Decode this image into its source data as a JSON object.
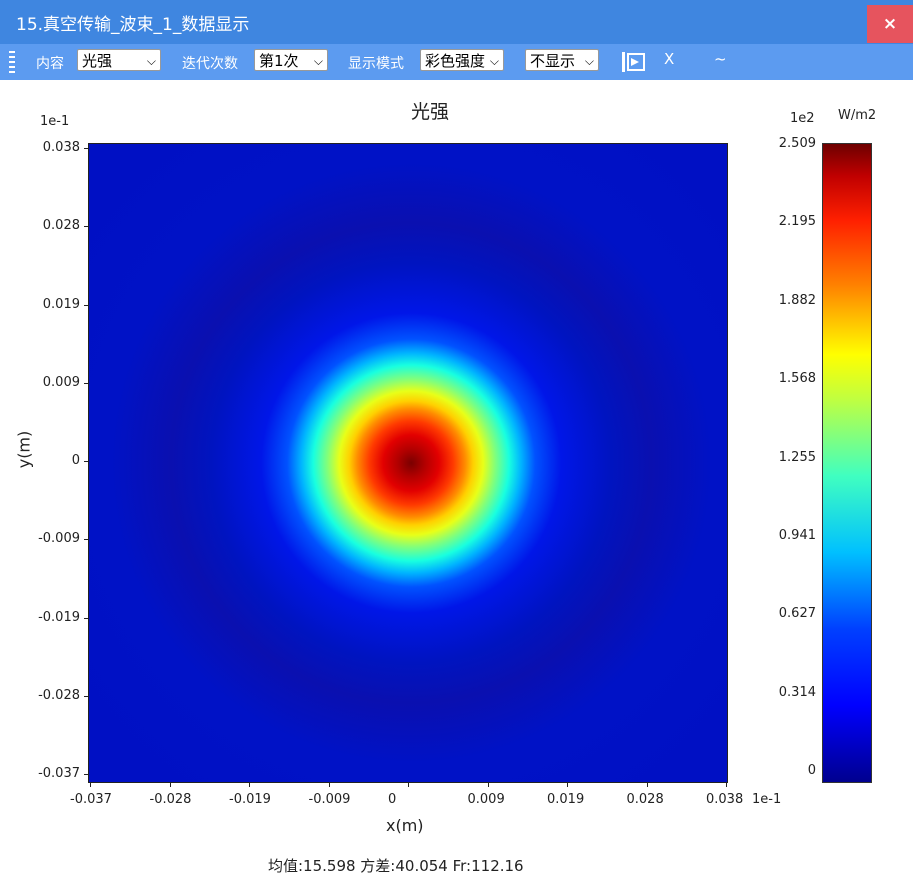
{
  "window": {
    "title": "15.真空传输_波束_1_数据显示",
    "close_label": "×"
  },
  "toolbar": {
    "content_label": "内容",
    "content_value": "光强",
    "iter_label": "迭代次数",
    "iter_value": "第1次",
    "mode_label": "显示模式",
    "mode_value": "彩色强度",
    "display_value": "不显示",
    "x_button": "X",
    "wave_button": "~"
  },
  "plot": {
    "title": "光强",
    "y_exponent": "1e-1",
    "x_exponent": "1e-1",
    "xlabel": "x(m)",
    "ylabel": "y(m)",
    "y_ticks": [
      "0.038",
      "0.028",
      "0.019",
      "0.009",
      "0",
      "-0.009",
      "-0.019",
      "-0.028",
      "-0.037"
    ],
    "x_ticks": [
      "-0.037",
      "-0.028",
      "-0.019",
      "-0.009",
      "0",
      "0.009",
      "0.019",
      "0.028",
      "0.038"
    ]
  },
  "colorbar": {
    "exponent": "1e2",
    "unit": "W/m2",
    "ticks": [
      "2.509",
      "2.195",
      "1.882",
      "1.568",
      "1.255",
      "0.941",
      "0.627",
      "0.314",
      "0"
    ]
  },
  "stats": "均值:15.598  方差:40.054  Fr:112.16"
}
